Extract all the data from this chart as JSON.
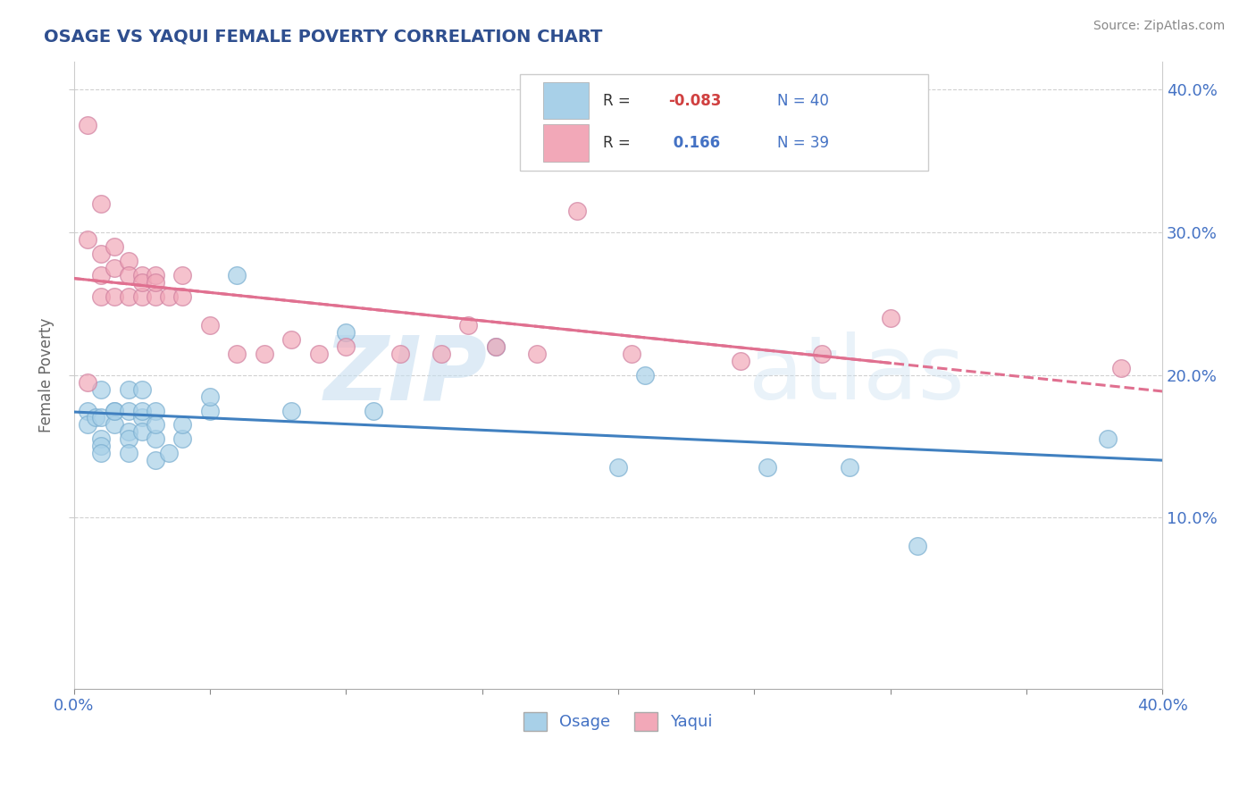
{
  "title": "OSAGE VS YAQUI FEMALE POVERTY CORRELATION CHART",
  "source": "Source: ZipAtlas.com",
  "ylabel": "Female Poverty",
  "xlim": [
    0.0,
    0.4
  ],
  "ylim": [
    -0.02,
    0.42
  ],
  "xtick_values": [
    0.0,
    0.05,
    0.1,
    0.15,
    0.2,
    0.25,
    0.3,
    0.35,
    0.4
  ],
  "xtick_labels_show": [
    "0.0%",
    "",
    "",
    "",
    "",
    "",
    "",
    "",
    "40.0%"
  ],
  "ytick_values_right": [
    0.1,
    0.2,
    0.3,
    0.4
  ],
  "ytick_labels_right": [
    "10.0%",
    "20.0%",
    "30.0%",
    "40.0%"
  ],
  "osage_color": "#A8D0E8",
  "yaqui_color": "#F2A8B8",
  "osage_line_color": "#4080C0",
  "yaqui_line_color": "#E07090",
  "yaqui_line_dashed_color": "#E0A0B0",
  "R_osage": -0.083,
  "N_osage": 40,
  "R_yaqui": 0.166,
  "N_yaqui": 39,
  "watermark_zip": "ZIP",
  "watermark_atlas": "atlas",
  "background_color": "#ffffff",
  "grid_color": "#cccccc",
  "title_color": "#2F4F8F",
  "source_color": "#888888",
  "axis_label_color": "#4472C4",
  "osage_x": [
    0.005,
    0.005,
    0.008,
    0.01,
    0.01,
    0.01,
    0.01,
    0.01,
    0.015,
    0.015,
    0.015,
    0.02,
    0.02,
    0.02,
    0.02,
    0.02,
    0.025,
    0.025,
    0.025,
    0.025,
    0.03,
    0.03,
    0.03,
    0.03,
    0.035,
    0.04,
    0.04,
    0.05,
    0.05,
    0.06,
    0.08,
    0.1,
    0.11,
    0.155,
    0.2,
    0.21,
    0.255,
    0.285,
    0.31,
    0.38
  ],
  "osage_y": [
    0.175,
    0.165,
    0.17,
    0.155,
    0.15,
    0.145,
    0.17,
    0.19,
    0.175,
    0.165,
    0.175,
    0.16,
    0.175,
    0.19,
    0.155,
    0.145,
    0.17,
    0.16,
    0.175,
    0.19,
    0.155,
    0.14,
    0.175,
    0.165,
    0.145,
    0.155,
    0.165,
    0.175,
    0.185,
    0.27,
    0.175,
    0.23,
    0.175,
    0.22,
    0.135,
    0.2,
    0.135,
    0.135,
    0.08,
    0.155
  ],
  "yaqui_x": [
    0.005,
    0.005,
    0.005,
    0.01,
    0.01,
    0.01,
    0.01,
    0.015,
    0.015,
    0.015,
    0.02,
    0.02,
    0.02,
    0.025,
    0.025,
    0.025,
    0.03,
    0.03,
    0.03,
    0.035,
    0.04,
    0.04,
    0.05,
    0.06,
    0.07,
    0.08,
    0.09,
    0.1,
    0.12,
    0.135,
    0.145,
    0.155,
    0.17,
    0.185,
    0.205,
    0.245,
    0.275,
    0.3,
    0.385
  ],
  "yaqui_y": [
    0.375,
    0.295,
    0.195,
    0.32,
    0.285,
    0.27,
    0.255,
    0.29,
    0.275,
    0.255,
    0.28,
    0.27,
    0.255,
    0.27,
    0.255,
    0.265,
    0.27,
    0.255,
    0.265,
    0.255,
    0.27,
    0.255,
    0.235,
    0.215,
    0.215,
    0.225,
    0.215,
    0.22,
    0.215,
    0.215,
    0.235,
    0.22,
    0.215,
    0.315,
    0.215,
    0.21,
    0.215,
    0.24,
    0.205
  ]
}
